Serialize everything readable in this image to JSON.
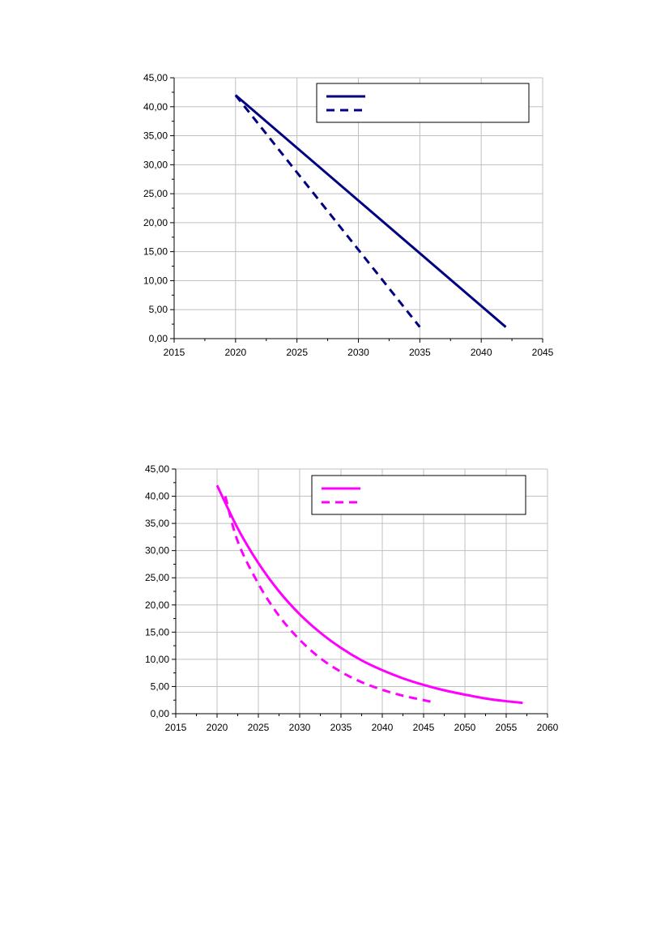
{
  "chart_data": [
    {
      "type": "line",
      "title": "",
      "xlabel": "",
      "ylabel": "",
      "xlim": [
        2015,
        2045
      ],
      "ylim": [
        0,
        45
      ],
      "x_ticks": [
        2015,
        2020,
        2025,
        2030,
        2035,
        2040,
        2045
      ],
      "x_tick_labels": [
        "2015",
        "2020",
        "2025",
        "2030",
        "2035",
        "2040",
        "2045"
      ],
      "y_ticks": [
        0,
        5,
        10,
        15,
        20,
        25,
        30,
        35,
        40,
        45
      ],
      "y_tick_labels": [
        "0,00",
        "5,00",
        "10,00",
        "15,00",
        "20,00",
        "25,00",
        "30,00",
        "35,00",
        "40,00",
        "45,00"
      ],
      "grid": true,
      "legend": "top-right",
      "color": "#000080",
      "series": [
        {
          "style": "solid",
          "x": [
            2020,
            2042
          ],
          "y": [
            42,
            2
          ]
        },
        {
          "style": "dashed",
          "x": [
            2020,
            2035
          ],
          "y": [
            42,
            2
          ]
        }
      ]
    },
    {
      "type": "line",
      "title": "",
      "xlabel": "",
      "ylabel": "",
      "xlim": [
        2015,
        2060
      ],
      "ylim": [
        0,
        45
      ],
      "x_ticks": [
        2015,
        2020,
        2025,
        2030,
        2035,
        2040,
        2045,
        2050,
        2055,
        2060
      ],
      "x_tick_labels": [
        "2015",
        "2020",
        "2025",
        "2030",
        "2035",
        "2040",
        "2045",
        "2050",
        "2055",
        "2060"
      ],
      "y_ticks": [
        0,
        5,
        10,
        15,
        20,
        25,
        30,
        35,
        40,
        45
      ],
      "y_tick_labels": [
        "0,00",
        "5,00",
        "10,00",
        "15,00",
        "20,00",
        "25,00",
        "30,00",
        "35,00",
        "40,00",
        "45,00"
      ],
      "grid": true,
      "legend": "top-right",
      "color": "#FF00FF",
      "series": [
        {
          "style": "solid",
          "x": [
            2020,
            2022.5,
            2025,
            2027.5,
            2030,
            2032.5,
            2035,
            2037.5,
            2040,
            2042.5,
            2045,
            2047.5,
            2050,
            2052.5,
            2055,
            2057
          ],
          "y": [
            42,
            34.1,
            27.7,
            22.5,
            18.3,
            14.9,
            12.1,
            9.8,
            8.0,
            6.5,
            5.3,
            4.3,
            3.5,
            2.8,
            2.3,
            2.0
          ]
        },
        {
          "style": "dashed",
          "x": [
            2021,
            2022.5,
            2025,
            2027.5,
            2030,
            2032.5,
            2035,
            2037.5,
            2040,
            2042.5,
            2045,
            2046.5
          ],
          "y": [
            40,
            31.7,
            23.9,
            18.0,
            13.6,
            10.2,
            7.7,
            5.8,
            4.4,
            3.3,
            2.5,
            2.0
          ]
        }
      ]
    }
  ]
}
